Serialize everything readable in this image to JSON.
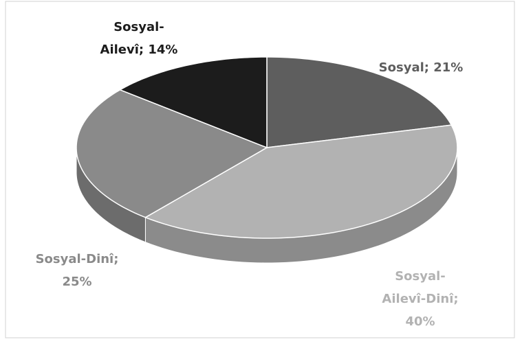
{
  "chart_data": {
    "type": "pie",
    "values": [
      21,
      40,
      25,
      14
    ],
    "value_labels": [
      [
        "Sosyal; 21%"
      ],
      [
        "Sosyal-",
        "Ailevî-Dinî;",
        "40%"
      ],
      [
        "Sosyal-Dinî;",
        "25%"
      ],
      [
        "Sosyal-",
        "Ailevî; 14%"
      ]
    ],
    "colors": [
      "#5e5e5e",
      "#b2b2b2",
      "#8a8a8a",
      "#1c1c1c"
    ]
  }
}
